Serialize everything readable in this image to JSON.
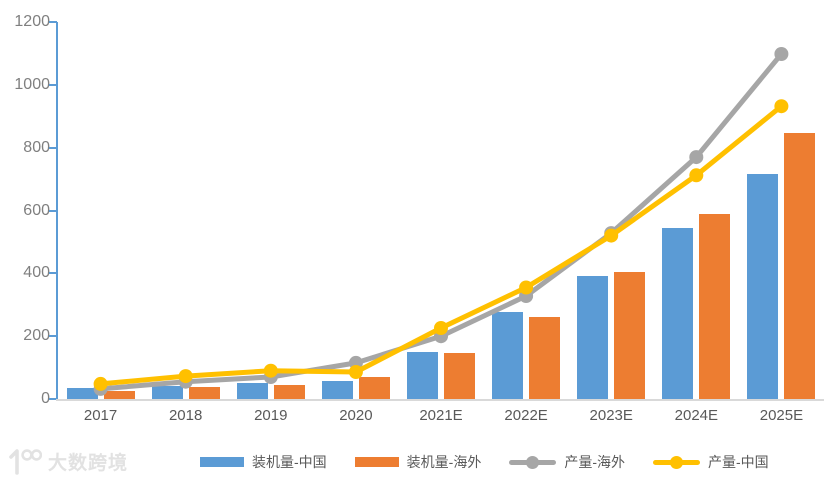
{
  "watermark": {
    "brand": "大数跨境"
  },
  "chart_data": {
    "type": "bar",
    "subtype": "combo-bar-line",
    "title": "",
    "xlabel": "",
    "ylabel": "",
    "categories": [
      "2017",
      "2018",
      "2019",
      "2020",
      "2021E",
      "2022E",
      "2023E",
      "2024E",
      "2025E"
    ],
    "series": [
      {
        "name": "装机量-中国",
        "type": "bar",
        "color": "#5B9BD5",
        "values": [
          35,
          40,
          52,
          58,
          150,
          276,
          392,
          545,
          716
        ]
      },
      {
        "name": "装机量-海外",
        "type": "bar",
        "color": "#ED7D31",
        "values": [
          25,
          38,
          46,
          70,
          147,
          260,
          404,
          590,
          846
        ]
      },
      {
        "name": "产量-海外",
        "type": "line",
        "color": "#A6A6A6",
        "values": [
          32,
          55,
          70,
          115,
          200,
          328,
          528,
          770,
          1098
        ]
      },
      {
        "name": "产量-中国",
        "type": "line",
        "color": "#FFC000",
        "values": [
          48,
          73,
          90,
          86,
          226,
          355,
          520,
          712,
          932
        ]
      }
    ],
    "ylim": [
      0,
      1200
    ],
    "ytick_step": 200,
    "grid": false,
    "legend_position": "bottom",
    "colors": {
      "y_axis_line": "#5B9BD5",
      "x_base_line": "#D9D9D9",
      "y_tick_label": "#7f7f7f",
      "x_tick_label": "#595959"
    }
  }
}
